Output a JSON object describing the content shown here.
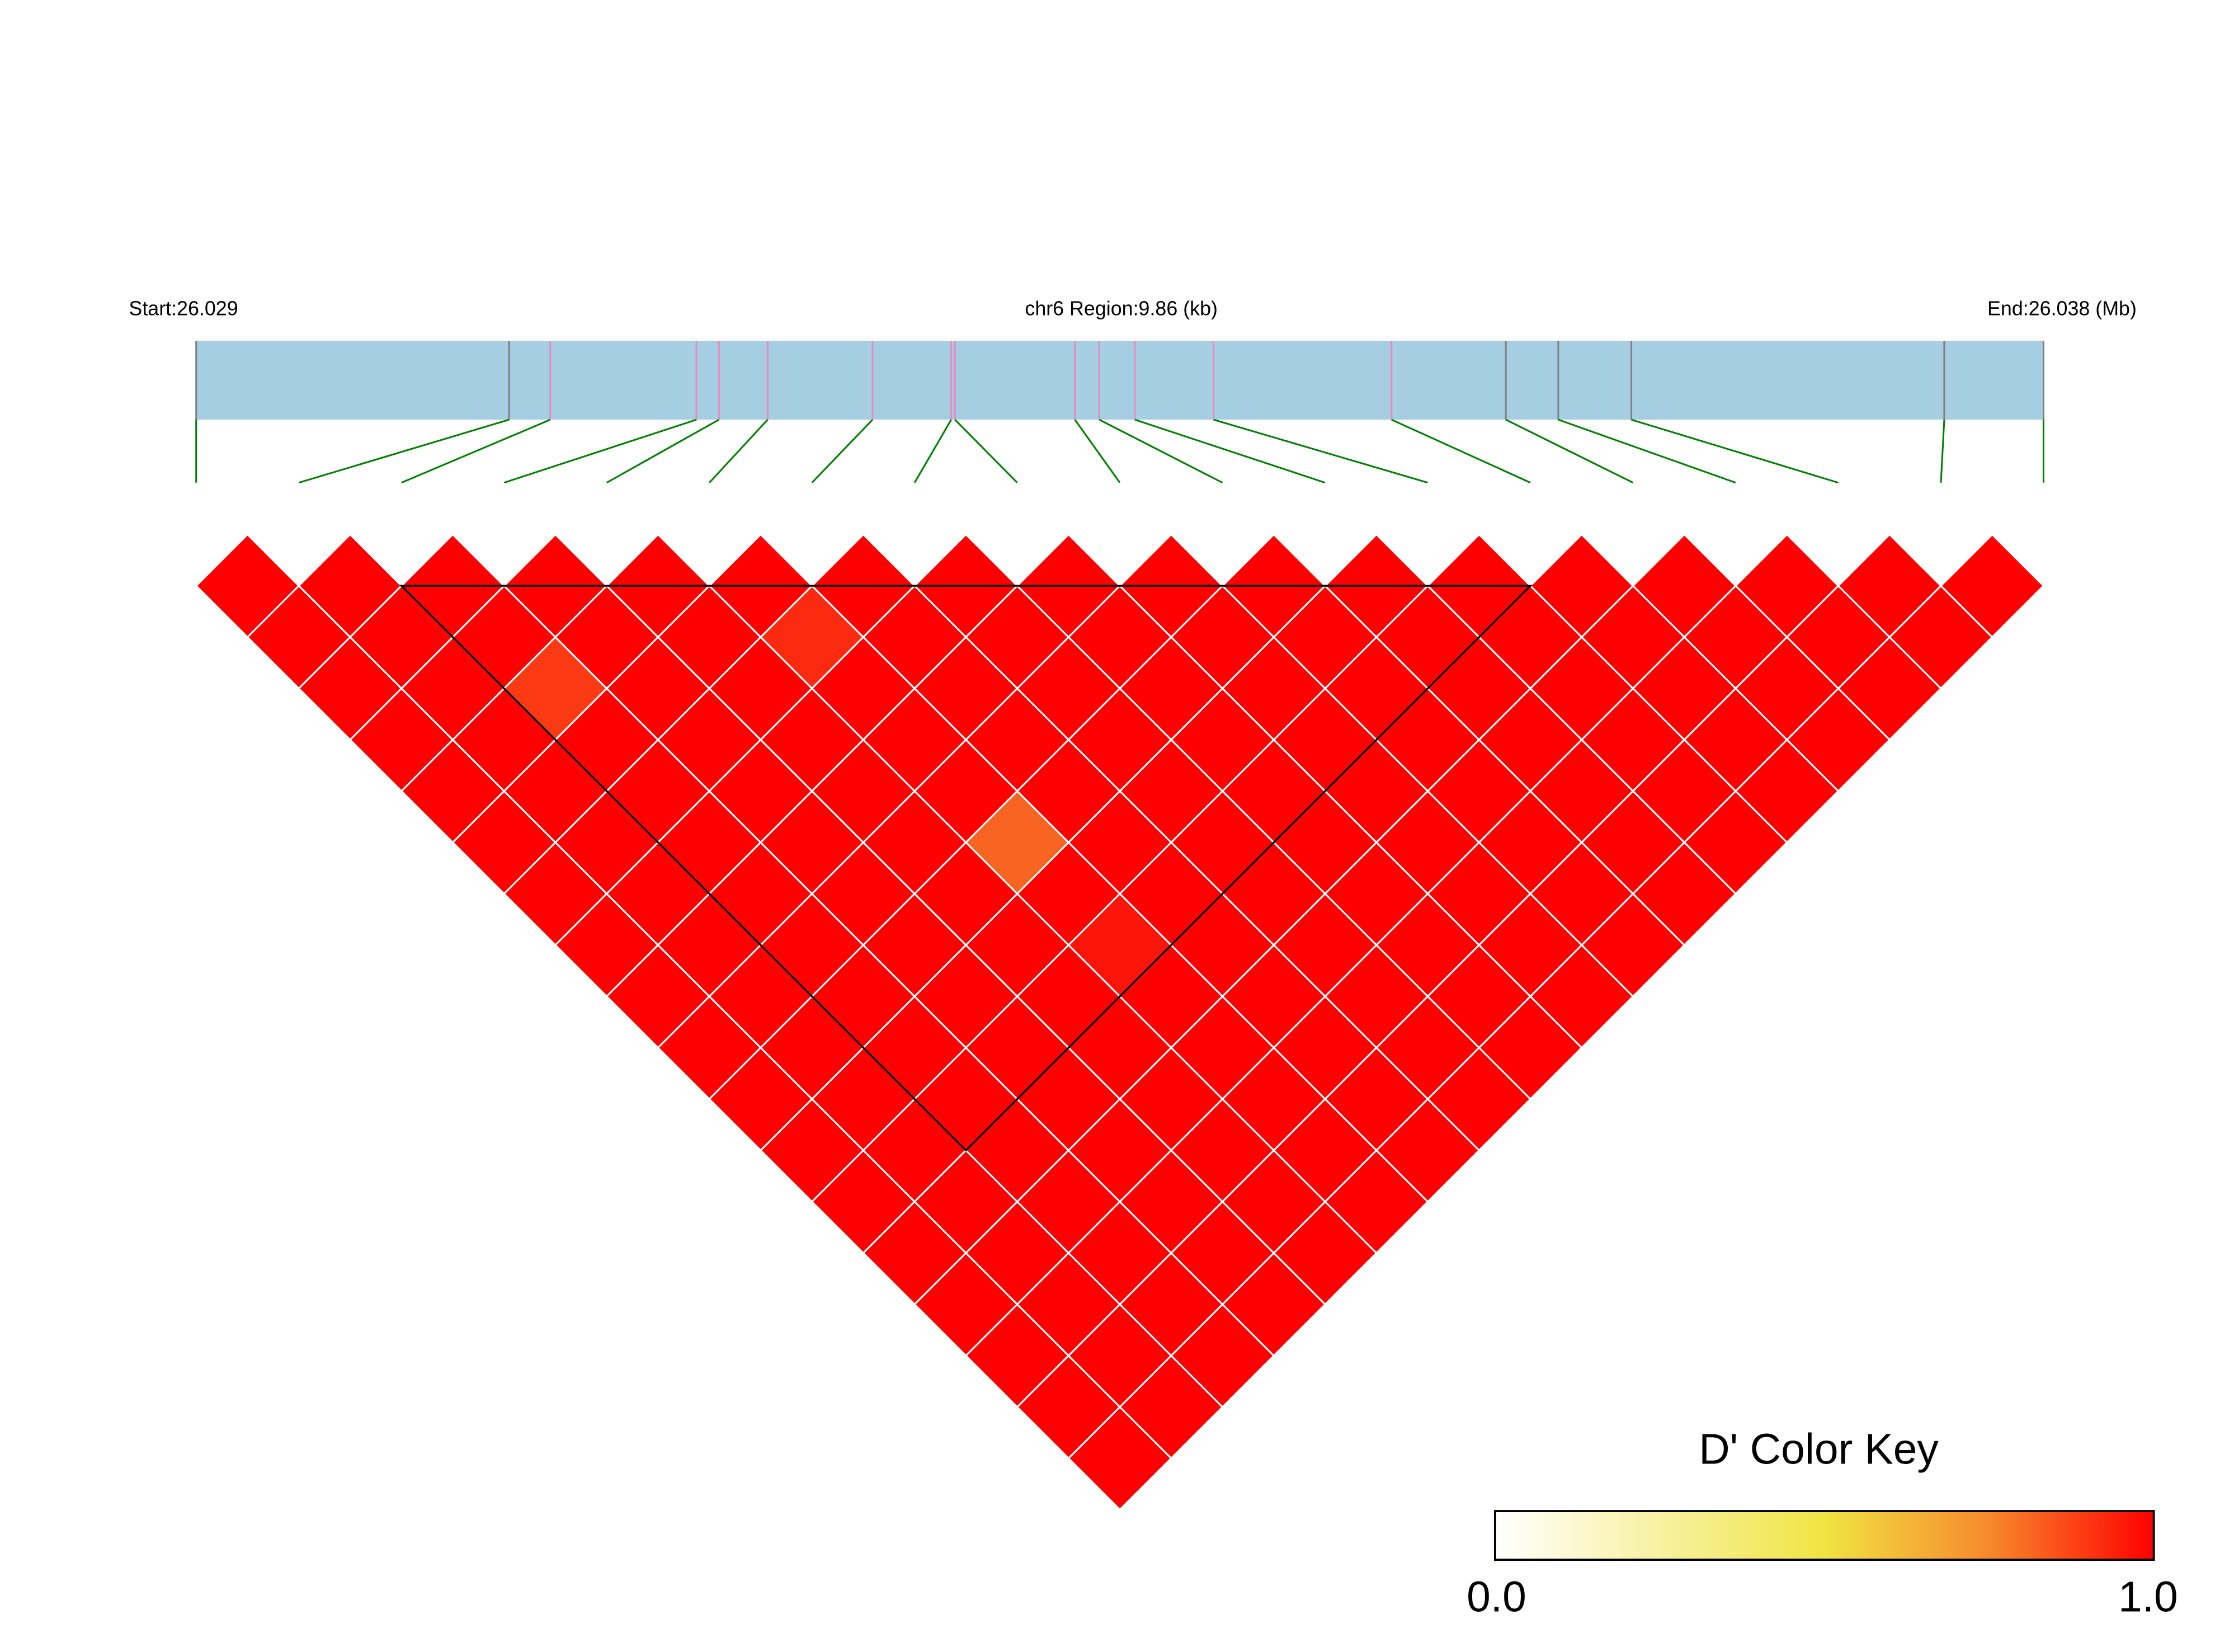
{
  "chart_data": {
    "type": "heatmap",
    "header": {
      "start_label": "Start:26.029",
      "region_label": "chr6 Region:9.86 (kb)",
      "end_label": "End:26.038 (Mb)"
    },
    "region_kb": 9.86,
    "snp_positions_kb": [
      0,
      1.67,
      1.89,
      2.67,
      2.79,
      3.05,
      3.61,
      4.03,
      4.05,
      4.69,
      4.82,
      5.01,
      5.43,
      6.38,
      6.99,
      7.27,
      7.66,
      9.33,
      9.86
    ],
    "snp_tick_colors": [
      "#808080",
      "#808080",
      "#e78ac3",
      "#e78ac3",
      "#e78ac3",
      "#e78ac3",
      "#e78ac3",
      "#e78ac3",
      "#e78ac3",
      "#e78ac3",
      "#e78ac3",
      "#e78ac3",
      "#e78ac3",
      "#e78ac3",
      "#808080",
      "#808080",
      "#808080",
      "#808080",
      "#808080"
    ],
    "default_dprime": 1.0,
    "dprime_exceptions": [
      {
        "i": 2,
        "j": 5,
        "value": 0.9,
        "color": "#fc3a14"
      },
      {
        "i": 5,
        "j": 7,
        "value": 0.93,
        "color": "#fb2a10"
      },
      {
        "i": 5,
        "j": 11,
        "value": 0.8,
        "color": "#f86422"
      },
      {
        "i": 5,
        "j": 13,
        "value": 0.96,
        "color": "#fc1508"
      }
    ],
    "block": {
      "first_snp": 2,
      "last_snp": 13
    },
    "colors": {
      "high": "#ff0000",
      "gene_bar": "#a6cee3",
      "connector": "#008000",
      "cell_border": "#ffffff",
      "block_outline": "#000000"
    },
    "legend": {
      "title": "D' Color Key",
      "min_label": "0.0",
      "max_label": "1.0",
      "placement": "bottom-right",
      "stops": [
        {
          "value": 0.0,
          "color": "#ffffff"
        },
        {
          "value": 0.5,
          "color": "#f0e442"
        },
        {
          "value": 0.75,
          "color": "#f7892c"
        },
        {
          "value": 1.0,
          "color": "#ff0000"
        }
      ]
    }
  }
}
